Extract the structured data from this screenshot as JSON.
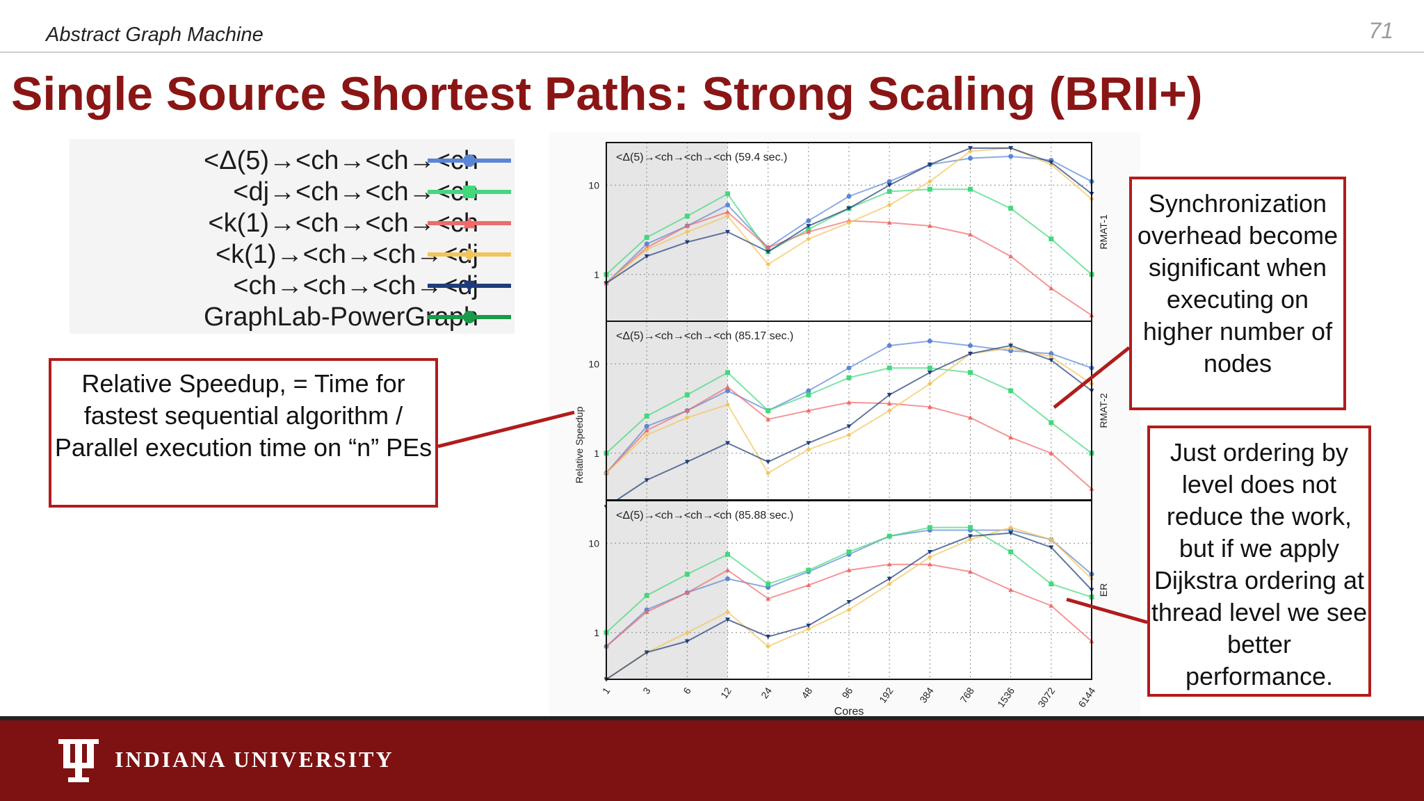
{
  "header": {
    "subtitle": "Abstract Graph Machine",
    "page_number": "71",
    "title": "Single Source Shortest Paths: Strong Scaling (BRII+)"
  },
  "legend": [
    {
      "label": "<Δ(5)→<ch→<ch→<ch",
      "color": "#5b86d6",
      "marker": "circle"
    },
    {
      "label": "<dj→<ch→<ch→<ch",
      "color": "#43d87c",
      "marker": "square"
    },
    {
      "label": "<k(1)→<ch→<ch→<ch",
      "color": "#ef6a6a",
      "marker": "triangle"
    },
    {
      "label": "<k(1)→<ch→<ch→<dj",
      "color": "#f3c45a",
      "marker": "diamond"
    },
    {
      "label": "<ch→<ch→<ch→<dj",
      "color": "#1f3d7a",
      "marker": "triangle-down"
    },
    {
      "label": "GraphLab-PowerGraph",
      "color": "#1a9a4a",
      "marker": "circle"
    }
  ],
  "callouts": {
    "speedup": "Relative Speedup, = Time for fastest sequential algorithm / Parallel execution time on “n” PEs",
    "sync": "Synchronization overhead become significant when executing on higher number of nodes",
    "ordering": "Just ordering by level does not reduce the work, but if we apply Dijkstra ordering at thread level we see better performance."
  },
  "footer": {
    "university": "INDIANA UNIVERSITY"
  },
  "chart_data": {
    "type": "line",
    "xlabel": "Cores",
    "ylabel": "Relative Speedup",
    "x": [
      "1",
      "3",
      "6",
      "12",
      "24",
      "48",
      "96",
      "192",
      "384",
      "768",
      "1536",
      "3072",
      "6144"
    ],
    "yscale": "log",
    "yticks": [
      "1",
      "10"
    ],
    "shaded_region": [
      "1",
      "12"
    ],
    "panels": [
      {
        "name": "RMAT-1",
        "annotation": "<Δ(5)→<ch→<ch→<ch (59.4 sec.)",
        "ylim": [
          0.3,
          30
        ],
        "series": [
          {
            "name": "<Δ(5)→<ch→<ch→<ch",
            "values": [
              0.8,
              2.2,
              3.5,
              6.0,
              2.0,
              4.0,
              7.5,
              11,
              17,
              20,
              21,
              19,
              11
            ]
          },
          {
            "name": "<dj→<ch→<ch→<ch",
            "values": [
              1.0,
              2.6,
              4.5,
              8.0,
              1.8,
              3.2,
              5.5,
              8.5,
              9.0,
              9.0,
              5.5,
              2.5,
              1.0
            ]
          },
          {
            "name": "<k(1)→<ch→<ch→<ch",
            "values": [
              0.8,
              2.0,
              3.5,
              5.0,
              2.0,
              3.0,
              4.0,
              3.8,
              3.5,
              2.8,
              1.6,
              0.7,
              0.35
            ]
          },
          {
            "name": "<k(1)→<ch→<ch→<dj",
            "values": [
              0.8,
              1.9,
              3.0,
              4.5,
              1.3,
              2.5,
              3.8,
              6.0,
              11,
              24,
              26,
              17,
              7
            ]
          },
          {
            "name": "<ch→<ch→<ch→<dj",
            "values": [
              0.8,
              1.6,
              2.3,
              3.0,
              1.8,
              3.5,
              5.5,
              10,
              17,
              26,
              26,
              18,
              8
            ]
          },
          {
            "name": "GraphLab-PowerGraph",
            "values": [
              null,
              null,
              null,
              null,
              null,
              null,
              null,
              null,
              null,
              null,
              null,
              null,
              null
            ]
          }
        ]
      },
      {
        "name": "RMAT-2",
        "annotation": "<Δ(5)→<ch→<ch→<ch (85.17 sec.)",
        "ylim": [
          0.3,
          30
        ],
        "series": [
          {
            "name": "<Δ(5)→<ch→<ch→<ch",
            "values": [
              0.6,
              2.0,
              3.0,
              5.0,
              3.0,
              5.0,
              9.0,
              16,
              18,
              16,
              14,
              13,
              9
            ]
          },
          {
            "name": "<dj→<ch→<ch→<ch",
            "values": [
              1.0,
              2.6,
              4.5,
              8.0,
              3.0,
              4.5,
              7.0,
              9.0,
              9.0,
              8.0,
              5.0,
              2.2,
              1.0
            ]
          },
          {
            "name": "<k(1)→<ch→<ch→<ch",
            "values": [
              0.6,
              1.8,
              3.0,
              5.5,
              2.4,
              3.0,
              3.7,
              3.6,
              3.3,
              2.5,
              1.5,
              1.0,
              0.4
            ]
          },
          {
            "name": "<k(1)→<ch→<ch→<dj",
            "values": [
              0.6,
              1.6,
              2.5,
              3.5,
              0.6,
              1.1,
              1.6,
              3.0,
              6.0,
              13,
              15,
              12,
              6
            ]
          },
          {
            "name": "<ch→<ch→<ch→<dj",
            "values": [
              0.25,
              0.5,
              0.8,
              1.3,
              0.8,
              1.3,
              2.0,
              4.5,
              8.0,
              13,
              16,
              11,
              5
            ]
          },
          {
            "name": "GraphLab-PowerGraph",
            "values": [
              null,
              null,
              null,
              null,
              null,
              null,
              null,
              null,
              null,
              null,
              null,
              null,
              null
            ]
          }
        ]
      },
      {
        "name": "ER",
        "annotation": "<Δ(5)→<ch→<ch→<ch (85.88 sec.)",
        "ylim": [
          0.3,
          30
        ],
        "series": [
          {
            "name": "<Δ(5)→<ch→<ch→<ch",
            "values": [
              0.7,
              1.8,
              2.8,
              4.0,
              3.2,
              4.8,
              7.5,
              12,
              14,
              14,
              14,
              11,
              4.5
            ]
          },
          {
            "name": "<dj→<ch→<ch→<ch",
            "values": [
              1.0,
              2.6,
              4.5,
              7.5,
              3.5,
              5.0,
              8.0,
              12,
              15,
              15,
              8.0,
              3.5,
              2.5
            ]
          },
          {
            "name": "<k(1)→<ch→<ch→<ch",
            "values": [
              0.7,
              1.7,
              2.8,
              5.0,
              2.4,
              3.4,
              5.0,
              5.8,
              5.8,
              4.8,
              3.0,
              2.0,
              0.8
            ]
          },
          {
            "name": "<k(1)→<ch→<ch→<dj",
            "values": [
              0.3,
              0.6,
              1.0,
              1.7,
              0.7,
              1.1,
              1.8,
              3.5,
              7.0,
              11,
              15,
              11,
              4.0
            ]
          },
          {
            "name": "<ch→<ch→<ch→<dj",
            "values": [
              0.3,
              0.6,
              0.8,
              1.4,
              0.9,
              1.2,
              2.2,
              4.0,
              8.0,
              12,
              13,
              9.0,
              3.0
            ]
          },
          {
            "name": "GraphLab-PowerGraph",
            "values": [
              null,
              null,
              null,
              null,
              null,
              null,
              null,
              null,
              null,
              null,
              null,
              null,
              null
            ]
          }
        ]
      }
    ]
  }
}
